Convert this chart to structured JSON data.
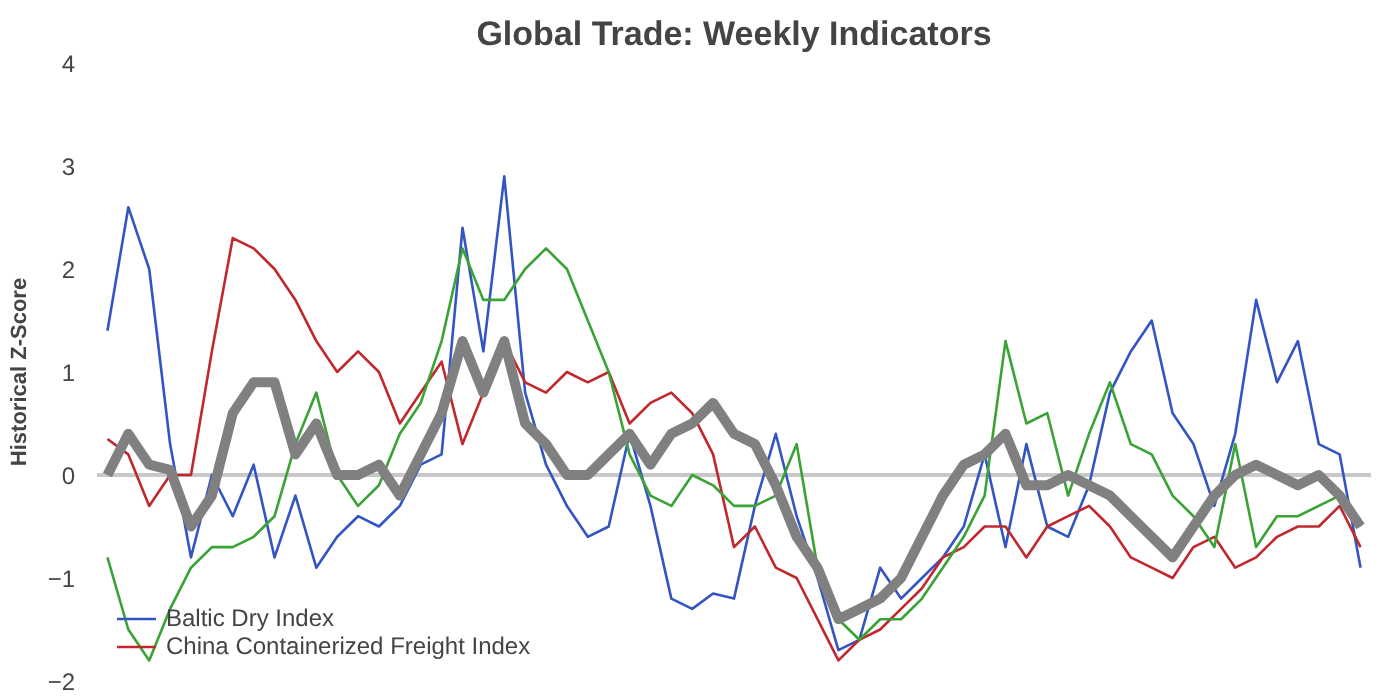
{
  "chart_data": {
    "type": "line",
    "title": "Global Trade: Weekly Indicators",
    "ylabel": "Historical Z-Score",
    "categories": [
      null,
      null,
      null,
      null,
      null,
      null,
      null,
      null,
      null,
      null,
      null,
      null,
      null,
      null,
      null,
      null,
      null,
      null,
      null,
      null,
      null,
      null,
      null,
      null,
      null,
      null,
      null,
      null,
      null,
      null,
      null,
      null,
      null,
      null,
      null,
      null,
      null,
      null,
      null,
      null,
      null,
      null,
      null,
      null,
      null,
      null,
      null,
      null,
      null,
      null,
      null,
      null,
      null,
      null,
      null,
      null,
      null,
      null,
      null,
      null,
      null
    ],
    "ylim": [
      -2,
      4
    ],
    "yticks": [
      -2,
      -1,
      0,
      1,
      2,
      3,
      4
    ],
    "legend": "bottom left",
    "line_style": "solid",
    "ref_lines": [
      {
        "axis": "y",
        "value": 0,
        "color": "#c8c8c8"
      }
    ],
    "series": [
      {
        "name": "Baltic Dry Index",
        "color": "#3355c4",
        "values": [
          1.4,
          2.6,
          2.0,
          0.3,
          -0.8,
          0.0,
          -0.4,
          0.1,
          -0.8,
          -0.2,
          -0.9,
          -0.6,
          -0.4,
          -0.5,
          -0.3,
          0.1,
          0.2,
          2.4,
          1.2,
          2.9,
          0.8,
          0.1,
          -0.3,
          -0.6,
          -0.5,
          0.4,
          -0.3,
          -1.2,
          -1.3,
          -1.15,
          -1.2,
          -0.3,
          0.4,
          -0.4,
          -1.0,
          -1.7,
          -1.6,
          -0.9,
          -1.2,
          -1.0,
          -0.8,
          -0.5,
          0.2,
          -0.7,
          0.3,
          -0.5,
          -0.6,
          -0.1,
          0.8,
          1.2,
          1.5,
          0.6,
          0.3,
          -0.3,
          0.4,
          1.7,
          0.9,
          1.3,
          0.3,
          0.2,
          -0.9
        ]
      },
      {
        "name": "China Containerized Freight Index",
        "color": "#c0282d",
        "values": [
          0.35,
          0.2,
          -0.3,
          0.0,
          0.0,
          1.2,
          2.3,
          2.2,
          2.0,
          1.7,
          1.3,
          1.0,
          1.2,
          1.0,
          0.5,
          0.8,
          1.1,
          0.3,
          0.8,
          1.3,
          0.9,
          0.8,
          1.0,
          0.9,
          1.0,
          0.5,
          0.7,
          0.8,
          0.6,
          0.2,
          -0.7,
          -0.5,
          -0.9,
          -1.0,
          -1.4,
          -1.8,
          -1.6,
          -1.5,
          -1.3,
          -1.1,
          -0.8,
          -0.7,
          -0.5,
          -0.5,
          -0.8,
          -0.5,
          -0.4,
          -0.3,
          -0.5,
          -0.8,
          -0.9,
          -1.0,
          -0.7,
          -0.6,
          -0.9,
          -0.8,
          -0.6,
          -0.5,
          -0.5,
          -0.3,
          -0.7
        ]
      },
      {
        "color": "#3aa335",
        "values": [
          -0.8,
          -1.5,
          -1.8,
          -1.3,
          -0.9,
          -0.7,
          -0.7,
          -0.6,
          -0.4,
          0.3,
          0.8,
          0.0,
          -0.3,
          -0.1,
          0.4,
          0.7,
          1.3,
          2.2,
          1.7,
          1.7,
          2.0,
          2.2,
          2.0,
          1.5,
          1.0,
          0.2,
          -0.2,
          -0.3,
          0.0,
          -0.1,
          -0.3,
          -0.3,
          -0.2,
          0.3,
          -0.9,
          -1.4,
          -1.6,
          -1.4,
          -1.4,
          -1.2,
          -0.9,
          -0.6,
          -0.2,
          1.3,
          0.5,
          0.6,
          -0.2,
          0.4,
          0.9,
          0.3,
          0.2,
          -0.2,
          -0.4,
          -0.7,
          0.3,
          -0.7,
          -0.4,
          -0.4,
          -0.3,
          -0.2,
          -0.5
        ]
      },
      {
        "color": "#808080",
        "values": [
          0.0,
          0.4,
          0.1,
          0.05,
          -0.5,
          -0.2,
          0.6,
          0.9,
          0.9,
          0.2,
          0.5,
          0.0,
          0.0,
          0.1,
          -0.2,
          0.2,
          0.6,
          1.3,
          0.8,
          1.3,
          0.5,
          0.3,
          0.0,
          0.0,
          0.2,
          0.4,
          0.1,
          0.4,
          0.5,
          0.7,
          0.4,
          0.3,
          -0.1,
          -0.6,
          -0.9,
          -1.4,
          -1.3,
          -1.2,
          -1.0,
          -0.6,
          -0.2,
          0.1,
          0.2,
          0.4,
          -0.1,
          -0.1,
          0.0,
          -0.1,
          -0.2,
          -0.4,
          -0.6,
          -0.8,
          -0.5,
          -0.2,
          0.0,
          0.1,
          0.0,
          -0.1,
          0.0,
          -0.2,
          -0.5
        ]
      }
    ]
  }
}
